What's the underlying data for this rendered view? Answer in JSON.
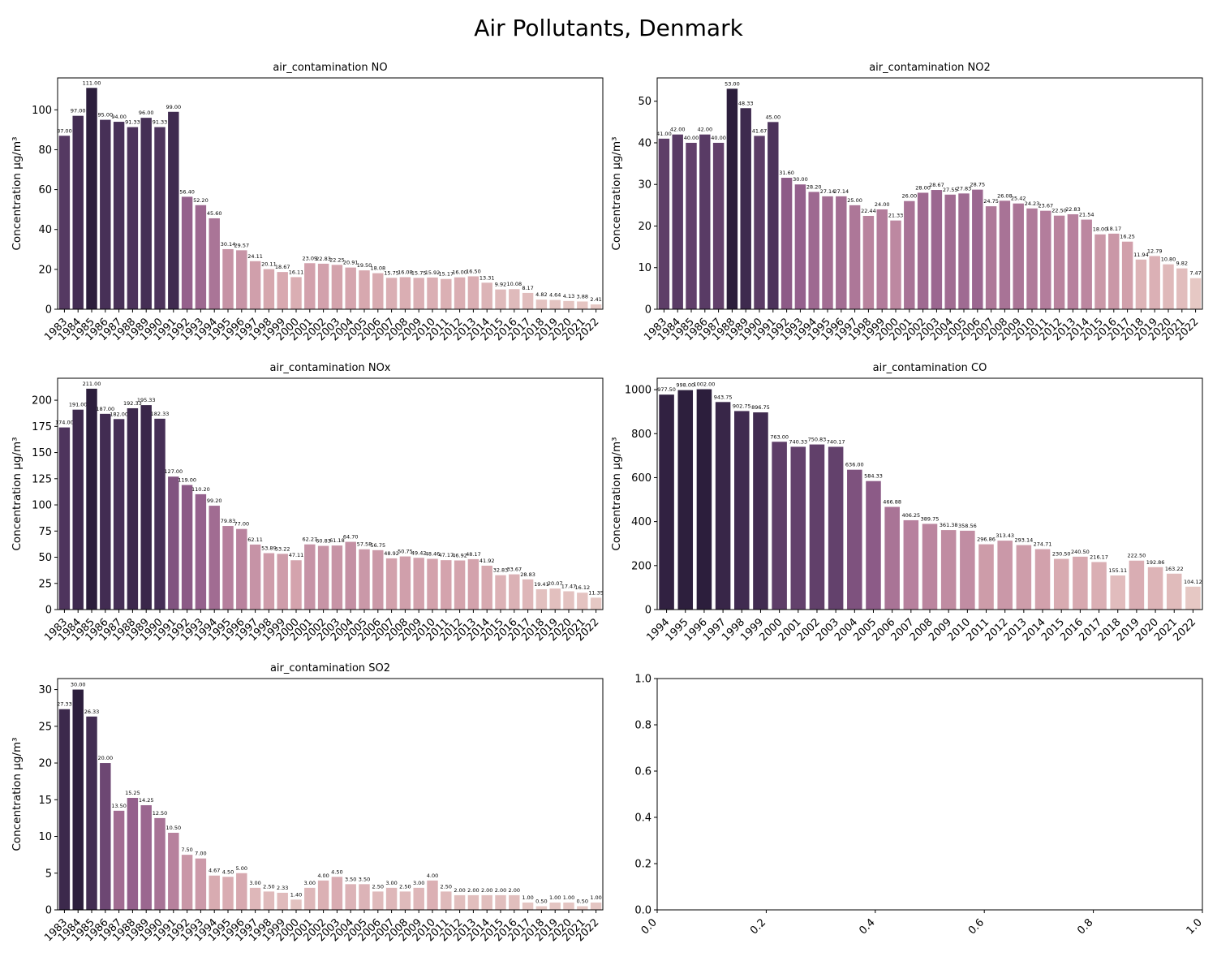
{
  "figure": {
    "title": "Air Pollutants, Denmark"
  },
  "chart_data": [
    {
      "type": "bar",
      "title": "air_contamination NO",
      "xlabel": "",
      "ylabel": "Concentration µg/m³",
      "ylim": [
        0,
        116
      ],
      "yticks": [
        0,
        20,
        40,
        60,
        80,
        100
      ],
      "value_format": "2 decimals",
      "categories": [
        "1983",
        "1984",
        "1985",
        "1986",
        "1987",
        "1988",
        "1989",
        "1990",
        "1991",
        "1992",
        "1993",
        "1994",
        "1995",
        "1996",
        "1997",
        "1998",
        "1999",
        "2000",
        "2001",
        "2002",
        "2003",
        "2004",
        "2005",
        "2006",
        "2007",
        "2008",
        "2009",
        "2010",
        "2011",
        "2012",
        "2013",
        "2014",
        "2015",
        "2016",
        "2017",
        "2018",
        "2019",
        "2020",
        "2021",
        "2022"
      ],
      "values": [
        87.0,
        97.0,
        111.0,
        95.0,
        94.0,
        91.33,
        96.0,
        91.33,
        99.0,
        56.4,
        52.2,
        45.6,
        30.14,
        29.57,
        24.11,
        20.11,
        18.67,
        16.11,
        23.09,
        22.83,
        22.25,
        20.91,
        19.5,
        18.08,
        15.75,
        16.08,
        15.75,
        15.92,
        15.17,
        16.0,
        16.5,
        13.31,
        9.92,
        10.08,
        8.17,
        4.82,
        4.64,
        4.13,
        3.88,
        2.41
      ]
    },
    {
      "type": "bar",
      "title": "air_contamination NO2",
      "xlabel": "",
      "ylabel": "Concentration µg/m³",
      "ylim": [
        0,
        55.6
      ],
      "yticks": [
        0,
        10,
        20,
        30,
        40,
        50
      ],
      "value_format": "2 decimals",
      "categories": [
        "1983",
        "1984",
        "1985",
        "1986",
        "1987",
        "1988",
        "1989",
        "1990",
        "1991",
        "1992",
        "1993",
        "1994",
        "1995",
        "1996",
        "1997",
        "1998",
        "1999",
        "2000",
        "2001",
        "2002",
        "2003",
        "2004",
        "2005",
        "2006",
        "2007",
        "2008",
        "2009",
        "2010",
        "2011",
        "2012",
        "2013",
        "2014",
        "2015",
        "2016",
        "2017",
        "2018",
        "2019",
        "2020",
        "2021",
        "2022"
      ],
      "values": [
        41.0,
        42.0,
        40.0,
        42.0,
        40.0,
        53.0,
        48.33,
        41.67,
        45.0,
        31.6,
        30.0,
        28.2,
        27.14,
        27.14,
        25.0,
        22.44,
        24.0,
        21.33,
        26.0,
        28.0,
        28.67,
        27.55,
        27.83,
        28.75,
        24.75,
        26.08,
        25.42,
        24.23,
        23.67,
        22.5,
        22.83,
        21.54,
        18.0,
        18.17,
        16.25,
        11.94,
        12.79,
        10.8,
        9.82,
        7.47
      ]
    },
    {
      "type": "bar",
      "title": "air_contamination NOx",
      "xlabel": "",
      "ylabel": "Concentration µg/m³",
      "ylim": [
        0,
        221
      ],
      "yticks": [
        0,
        25,
        50,
        75,
        100,
        125,
        150,
        175,
        200
      ],
      "value_format": "2 decimals",
      "categories": [
        "1983",
        "1984",
        "1985",
        "1986",
        "1987",
        "1988",
        "1989",
        "1990",
        "1991",
        "1992",
        "1993",
        "1994",
        "1995",
        "1996",
        "1997",
        "1998",
        "1999",
        "2000",
        "2001",
        "2002",
        "2003",
        "2004",
        "2005",
        "2006",
        "2007",
        "2008",
        "2009",
        "2010",
        "2011",
        "2012",
        "2013",
        "2014",
        "2015",
        "2016",
        "2017",
        "2018",
        "2019",
        "2020",
        "2021",
        "2022"
      ],
      "values": [
        174.0,
        191.0,
        211.0,
        187.0,
        182.0,
        192.33,
        195.33,
        182.33,
        127.0,
        119.0,
        110.2,
        99.2,
        79.83,
        77.0,
        62.11,
        53.89,
        53.22,
        47.11,
        62.27,
        60.83,
        61.18,
        64.7,
        57.58,
        56.75,
        48.92,
        50.75,
        49.42,
        48.46,
        47.17,
        46.92,
        48.17,
        41.92,
        32.83,
        33.67,
        28.83,
        19.41,
        20.07,
        17.47,
        16.12,
        11.35
      ]
    },
    {
      "type": "bar",
      "title": "air_contamination CO",
      "xlabel": "",
      "ylabel": "Concentration µg/m³",
      "ylim": [
        0,
        1052
      ],
      "yticks": [
        0,
        200,
        400,
        600,
        800,
        1000
      ],
      "value_format": "2 decimals",
      "categories": [
        "1994",
        "1995",
        "1996",
        "1997",
        "1998",
        "1999",
        "2000",
        "2001",
        "2002",
        "2003",
        "2004",
        "2005",
        "2006",
        "2007",
        "2008",
        "2009",
        "2010",
        "2011",
        "2012",
        "2013",
        "2014",
        "2015",
        "2016",
        "2017",
        "2018",
        "2019",
        "2020",
        "2021",
        "2022"
      ],
      "values": [
        977.5,
        998.0,
        1002.0,
        943.75,
        902.75,
        896.75,
        763.0,
        740.33,
        750.83,
        740.17,
        636.0,
        584.33,
        466.88,
        406.25,
        389.75,
        361.38,
        358.56,
        296.86,
        313.43,
        293.14,
        274.71,
        230.5,
        240.5,
        216.17,
        155.11,
        222.5,
        192.86,
        163.22,
        104.12
      ]
    },
    {
      "type": "bar",
      "title": "air_contamination SO2",
      "xlabel": "",
      "ylabel": "Concentration µg/m³",
      "ylim": [
        0,
        31.5
      ],
      "yticks": [
        0,
        5,
        10,
        15,
        20,
        25,
        30
      ],
      "value_format": "2 decimals",
      "categories": [
        "1983",
        "1984",
        "1985",
        "1986",
        "1987",
        "1988",
        "1989",
        "1990",
        "1991",
        "1992",
        "1993",
        "1994",
        "1995",
        "1996",
        "1997",
        "1998",
        "1999",
        "2000",
        "2001",
        "2002",
        "2003",
        "2004",
        "2005",
        "2006",
        "2007",
        "2008",
        "2009",
        "2010",
        "2011",
        "2012",
        "2013",
        "2014",
        "2015",
        "2016",
        "2017",
        "2018",
        "2019",
        "2020",
        "2021",
        "2022"
      ],
      "values": [
        27.33,
        30.0,
        26.33,
        20.0,
        13.5,
        15.25,
        14.25,
        12.5,
        10.5,
        7.5,
        7.0,
        4.67,
        4.5,
        5.0,
        3.0,
        2.5,
        2.33,
        1.4,
        3.0,
        4.0,
        4.5,
        3.5,
        3.5,
        2.5,
        3.0,
        2.5,
        3.0,
        4.0,
        2.5,
        2.0,
        2.0,
        2.0,
        2.0,
        2.0,
        1.0,
        0.5,
        1.0,
        1.0,
        0.5,
        1.0
      ]
    },
    {
      "type": "empty",
      "title": "",
      "xlim": [
        0,
        1
      ],
      "ylim": [
        0,
        1
      ],
      "xticks": [
        "0.0",
        "0.2",
        "0.4",
        "0.6",
        "0.8",
        "1.0"
      ],
      "yticks": [
        "0.0",
        "0.2",
        "0.4",
        "0.6",
        "0.8",
        "1.0"
      ]
    }
  ]
}
